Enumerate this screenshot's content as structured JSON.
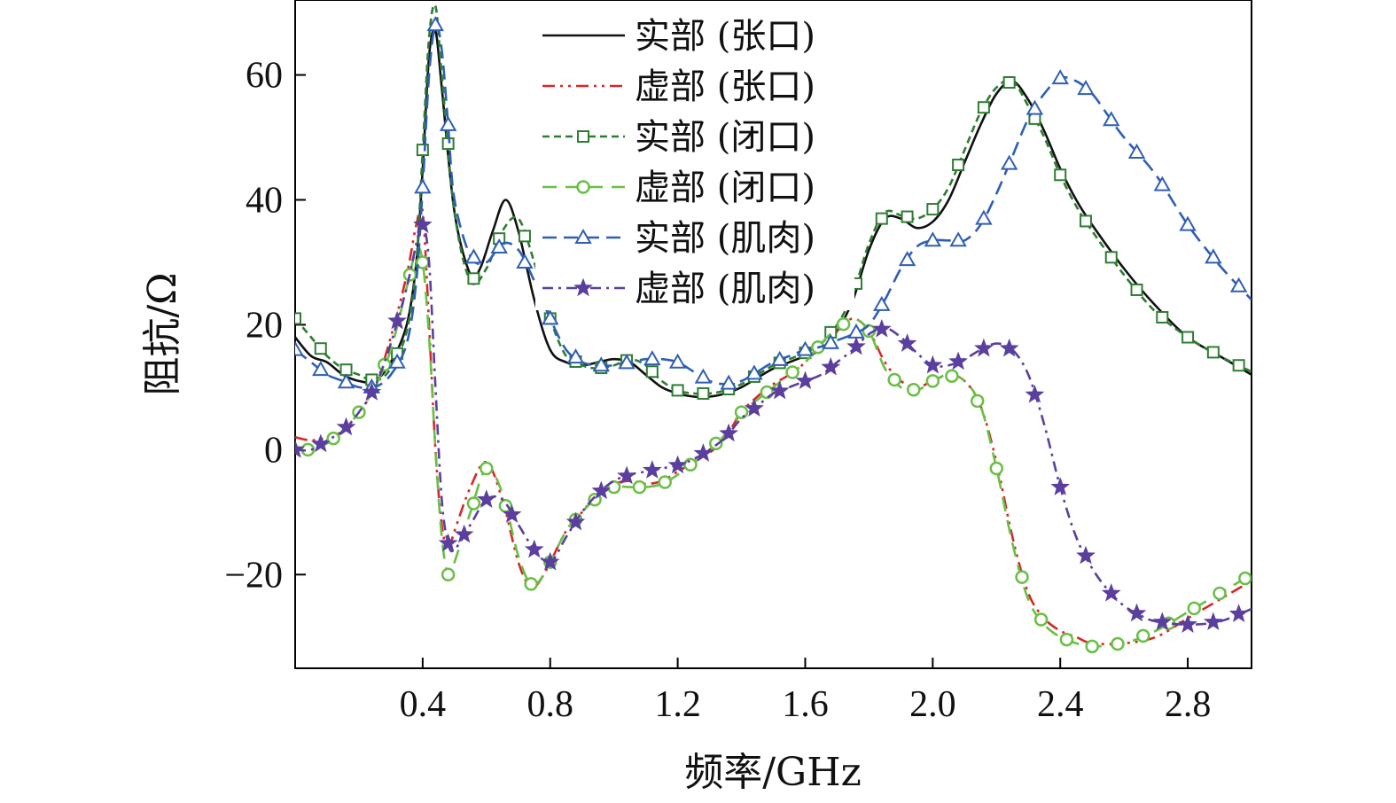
{
  "chart_data": {
    "type": "line",
    "xlabel": "频率/GHz",
    "ylabel": "阻抗/Ω",
    "xlim": [
      0.0,
      3.0
    ],
    "ylim": [
      -35,
      72
    ],
    "xticks": [
      0.4,
      0.8,
      1.2,
      1.6,
      2.0,
      2.4,
      2.8
    ],
    "xtick_labels": [
      "0.4",
      "0.8",
      "1.2",
      "1.6",
      "2.0",
      "2.4",
      "2.8"
    ],
    "yticks": [
      -20,
      0,
      20,
      40,
      60
    ],
    "ytick_labels": [
      "−20",
      "0",
      "20",
      "40",
      "60"
    ],
    "grid": false,
    "legend_position": "top-center",
    "series": [
      {
        "name": "实部 (张口)",
        "color": "#111111",
        "dash": "",
        "marker": "none",
        "x": [
          0.0,
          0.05,
          0.1,
          0.15,
          0.2,
          0.25,
          0.3,
          0.35,
          0.38,
          0.4,
          0.42,
          0.44,
          0.46,
          0.5,
          0.55,
          0.58,
          0.62,
          0.66,
          0.7,
          0.75,
          0.8,
          0.85,
          0.9,
          0.95,
          1.0,
          1.05,
          1.1,
          1.15,
          1.2,
          1.25,
          1.3,
          1.35,
          1.4,
          1.45,
          1.5,
          1.55,
          1.6,
          1.65,
          1.7,
          1.75,
          1.8,
          1.85,
          1.9,
          1.95,
          2.0,
          2.05,
          2.1,
          2.15,
          2.2,
          2.25,
          2.3,
          2.35,
          2.4,
          2.45,
          2.5,
          2.6,
          2.7,
          2.8,
          2.9,
          3.0
        ],
        "y": [
          18,
          15,
          14,
          12,
          11,
          11,
          14,
          20,
          30,
          45,
          63,
          67,
          58,
          38,
          28,
          29,
          35,
          40,
          35,
          24,
          16,
          14,
          13.5,
          14,
          14.5,
          14,
          12,
          10,
          9,
          8.5,
          8.5,
          9,
          10,
          11.5,
          13,
          14,
          15,
          16,
          19,
          24,
          32,
          37,
          37,
          35.5,
          36.5,
          40,
          46,
          52,
          57,
          59,
          56,
          51,
          45,
          40,
          36,
          29,
          23,
          18,
          15,
          12
        ]
      },
      {
        "name": "虚部 (张口)",
        "color": "#d62828",
        "dash": "14,6,3,6,3,6",
        "marker": "none",
        "x": [
          0.0,
          0.05,
          0.1,
          0.15,
          0.2,
          0.25,
          0.3,
          0.35,
          0.38,
          0.4,
          0.42,
          0.44,
          0.46,
          0.48,
          0.5,
          0.55,
          0.6,
          0.65,
          0.7,
          0.74,
          0.78,
          0.85,
          0.9,
          0.95,
          1.0,
          1.05,
          1.1,
          1.15,
          1.2,
          1.25,
          1.3,
          1.35,
          1.4,
          1.45,
          1.5,
          1.55,
          1.6,
          1.65,
          1.7,
          1.75,
          1.8,
          1.85,
          1.9,
          1.95,
          2.0,
          2.05,
          2.1,
          2.15,
          2.2,
          2.25,
          2.3,
          2.35,
          2.4,
          2.45,
          2.5,
          2.6,
          2.7,
          2.8,
          2.9,
          3.0
        ],
        "y": [
          2,
          1.5,
          2,
          3,
          6,
          10,
          18,
          28,
          36,
          38,
          20,
          0,
          -12,
          -16,
          -13,
          -6,
          -2,
          -8,
          -18,
          -22,
          -20,
          -13,
          -10,
          -7,
          -5.5,
          -5,
          -5.5,
          -5,
          -3.5,
          -2,
          -0.5,
          2,
          6,
          8.5,
          10.5,
          12,
          14,
          17,
          19,
          21,
          19,
          14,
          11,
          10,
          11,
          12,
          11,
          7,
          -2,
          -14,
          -23,
          -27,
          -29,
          -30,
          -31,
          -31,
          -30,
          -27,
          -24,
          -21
        ]
      },
      {
        "name": "实部 (闭口)",
        "color": "#2e7d32",
        "dash": "8,5",
        "marker": "square",
        "x": [
          0.0,
          0.05,
          0.1,
          0.15,
          0.2,
          0.25,
          0.3,
          0.35,
          0.38,
          0.4,
          0.42,
          0.44,
          0.46,
          0.5,
          0.55,
          0.6,
          0.65,
          0.7,
          0.75,
          0.8,
          0.85,
          0.9,
          0.95,
          1.0,
          1.05,
          1.1,
          1.15,
          1.2,
          1.25,
          1.3,
          1.35,
          1.4,
          1.45,
          1.5,
          1.55,
          1.6,
          1.65,
          1.7,
          1.75,
          1.8,
          1.85,
          1.9,
          1.95,
          2.0,
          2.05,
          2.1,
          2.15,
          2.2,
          2.25,
          2.3,
          2.35,
          2.4,
          2.45,
          2.5,
          2.6,
          2.7,
          2.8,
          2.9,
          3.0
        ],
        "y": [
          21,
          18,
          15,
          13,
          12,
          11,
          13,
          19,
          30,
          48,
          66,
          71,
          60,
          38,
          27,
          29,
          35,
          37,
          30,
          21,
          15,
          13.5,
          13,
          13.5,
          14.5,
          13.5,
          11,
          9.5,
          9,
          9,
          9.5,
          10.5,
          12,
          13.5,
          14.5,
          15.5,
          17,
          20,
          25,
          33,
          38,
          37.5,
          37,
          38.5,
          42,
          48,
          54,
          58,
          59,
          55,
          50,
          44,
          39,
          35,
          28,
          22,
          18,
          15,
          12.5
        ],
        "markers_x": [
          0.0,
          0.08,
          0.16,
          0.24,
          0.32,
          0.4,
          0.48,
          0.56,
          0.64,
          0.72,
          0.8,
          0.88,
          0.96,
          1.04,
          1.12,
          1.2,
          1.28,
          1.36,
          1.44,
          1.52,
          1.6,
          1.68,
          1.76,
          1.84,
          1.92,
          2.0,
          2.08,
          2.16,
          2.24,
          2.32,
          2.4,
          2.48,
          2.56,
          2.64,
          2.72,
          2.8,
          2.88,
          2.96
        ]
      },
      {
        "name": "虚部 (闭口)",
        "color": "#6abf45",
        "dash": "16,10",
        "marker": "circle",
        "x": [
          0.0,
          0.05,
          0.1,
          0.15,
          0.2,
          0.25,
          0.3,
          0.35,
          0.38,
          0.4,
          0.42,
          0.44,
          0.46,
          0.48,
          0.5,
          0.55,
          0.6,
          0.65,
          0.7,
          0.74,
          0.78,
          0.85,
          0.9,
          0.95,
          1.0,
          1.05,
          1.1,
          1.15,
          1.2,
          1.25,
          1.3,
          1.35,
          1.4,
          1.45,
          1.5,
          1.55,
          1.6,
          1.65,
          1.7,
          1.75,
          1.8,
          1.85,
          1.9,
          1.95,
          2.0,
          2.05,
          2.1,
          2.15,
          2.2,
          2.25,
          2.3,
          2.35,
          2.4,
          2.45,
          2.5,
          2.6,
          2.7,
          2.8,
          2.9,
          3.0
        ],
        "y": [
          0,
          0,
          1,
          3,
          6,
          10,
          16,
          26,
          32,
          30,
          18,
          0,
          -14,
          -20,
          -18,
          -10,
          -3,
          -7,
          -17,
          -21.5,
          -20,
          -13,
          -10,
          -7.5,
          -6,
          -6,
          -6,
          -5.5,
          -4,
          -2,
          0,
          2.5,
          6,
          8,
          10,
          12,
          14,
          17,
          19.5,
          21,
          19,
          13,
          10,
          9.5,
          11,
          12,
          11,
          7,
          -3,
          -15,
          -24,
          -28,
          -30,
          -31,
          -31.5,
          -31,
          -29,
          -26,
          -23,
          -20
        ],
        "markers_x": [
          0.04,
          0.12,
          0.2,
          0.28,
          0.36,
          0.4,
          0.48,
          0.56,
          0.6,
          0.66,
          0.74,
          0.8,
          0.88,
          0.94,
          1.0,
          1.08,
          1.16,
          1.24,
          1.32,
          1.4,
          1.48,
          1.56,
          1.64,
          1.72,
          1.8,
          1.88,
          1.94,
          2.0,
          2.06,
          2.14,
          2.2,
          2.28,
          2.34,
          2.42,
          2.5,
          2.58,
          2.66,
          2.74,
          2.82,
          2.9,
          2.98
        ]
      },
      {
        "name": "实部 (肌肉)",
        "color": "#2f5fb3",
        "dash": "16,8",
        "marker": "triangle",
        "x": [
          0.0,
          0.05,
          0.1,
          0.15,
          0.2,
          0.25,
          0.3,
          0.35,
          0.38,
          0.4,
          0.42,
          0.44,
          0.46,
          0.48,
          0.5,
          0.55,
          0.6,
          0.65,
          0.7,
          0.75,
          0.8,
          0.85,
          0.9,
          0.95,
          1.0,
          1.05,
          1.1,
          1.15,
          1.2,
          1.25,
          1.3,
          1.35,
          1.4,
          1.45,
          1.5,
          1.55,
          1.6,
          1.65,
          1.7,
          1.75,
          1.8,
          1.85,
          1.9,
          1.95,
          2.0,
          2.05,
          2.1,
          2.15,
          2.2,
          2.25,
          2.3,
          2.35,
          2.4,
          2.45,
          2.5,
          2.55,
          2.6,
          2.7,
          2.8,
          2.9,
          3.0
        ],
        "y": [
          16,
          14,
          12,
          11,
          10,
          10,
          12,
          17,
          27,
          42,
          60,
          68,
          64,
          52,
          40,
          31,
          30,
          33,
          32,
          27,
          21,
          16,
          14,
          13.5,
          13.5,
          14,
          14.5,
          14.5,
          14,
          12.5,
          11,
          10.5,
          11,
          12.5,
          14,
          15,
          16,
          16.5,
          17.5,
          18.5,
          20,
          24,
          29,
          32.5,
          33.5,
          33.5,
          33.5,
          36,
          41,
          47,
          53,
          57,
          59.5,
          59,
          57,
          53.5,
          50,
          44,
          36,
          29.5,
          24
        ],
        "markers_x": [
          0.0,
          0.08,
          0.16,
          0.24,
          0.32,
          0.4,
          0.44,
          0.48,
          0.56,
          0.64,
          0.72,
          0.8,
          0.88,
          0.96,
          1.04,
          1.12,
          1.2,
          1.28,
          1.36,
          1.44,
          1.52,
          1.6,
          1.68,
          1.76,
          1.84,
          1.92,
          2.0,
          2.08,
          2.16,
          2.24,
          2.32,
          2.4,
          2.48,
          2.56,
          2.64,
          2.72,
          2.8,
          2.88,
          2.96
        ]
      },
      {
        "name": "虚部 (肌肉)",
        "color": "#5b3f9e",
        "dash": "12,6,3,6",
        "marker": "star",
        "x": [
          0.0,
          0.05,
          0.1,
          0.15,
          0.2,
          0.25,
          0.3,
          0.35,
          0.38,
          0.4,
          0.42,
          0.44,
          0.46,
          0.48,
          0.5,
          0.55,
          0.6,
          0.65,
          0.7,
          0.75,
          0.8,
          0.85,
          0.9,
          0.95,
          1.0,
          1.05,
          1.1,
          1.15,
          1.2,
          1.25,
          1.3,
          1.35,
          1.4,
          1.45,
          1.5,
          1.55,
          1.6,
          1.65,
          1.7,
          1.75,
          1.8,
          1.85,
          1.9,
          1.95,
          2.0,
          2.05,
          2.1,
          2.15,
          2.2,
          2.25,
          2.3,
          2.35,
          2.4,
          2.45,
          2.5,
          2.55,
          2.6,
          2.65,
          2.7,
          2.8,
          2.9,
          3.0
        ],
        "y": [
          0,
          0,
          1.5,
          3,
          6,
          10,
          17,
          26,
          33,
          36,
          30,
          10,
          -8,
          -15,
          -16,
          -12,
          -8,
          -8,
          -12,
          -16,
          -18,
          -14,
          -10,
          -7,
          -5,
          -4,
          -3.5,
          -3,
          -2.5,
          -1.5,
          0,
          2,
          5,
          7,
          9,
          10,
          11,
          12,
          14,
          16,
          18.5,
          19.5,
          18,
          15.5,
          13.5,
          13.5,
          14.5,
          16,
          17,
          16,
          12,
          4,
          -6,
          -14,
          -19,
          -22.5,
          -25,
          -26.5,
          -27.5,
          -28,
          -27.5,
          -25.5
        ],
        "markers_x": [
          0.0,
          0.08,
          0.16,
          0.24,
          0.32,
          0.4,
          0.48,
          0.53,
          0.6,
          0.68,
          0.75,
          0.8,
          0.88,
          0.96,
          1.04,
          1.12,
          1.2,
          1.28,
          1.36,
          1.44,
          1.52,
          1.6,
          1.68,
          1.76,
          1.84,
          1.92,
          2.0,
          2.08,
          2.16,
          2.24,
          2.32,
          2.4,
          2.48,
          2.56,
          2.64,
          2.72,
          2.8,
          2.88,
          2.96
        ]
      }
    ]
  }
}
